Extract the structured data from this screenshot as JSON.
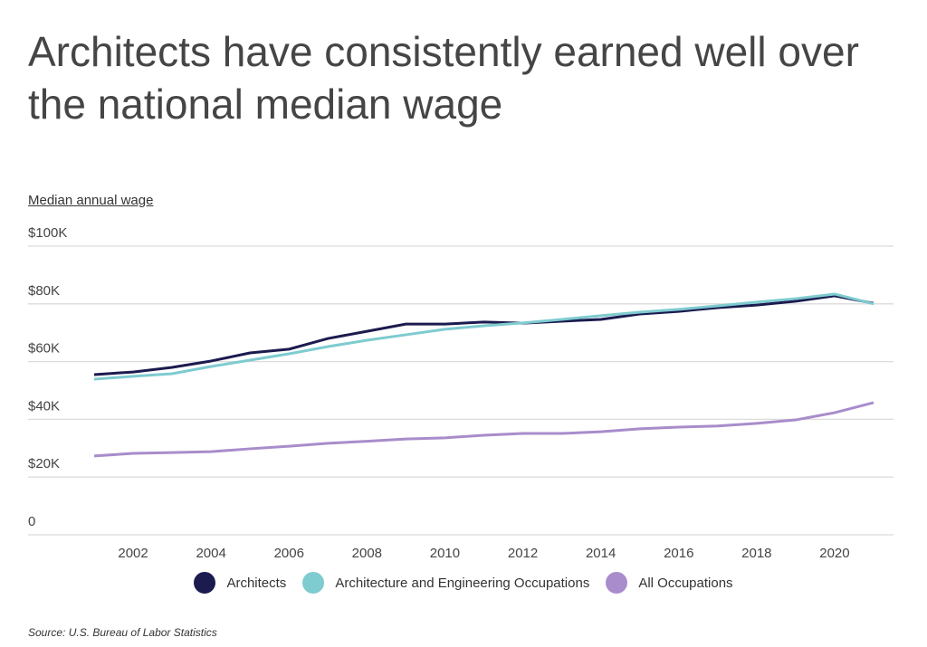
{
  "title": "Architects have consistently earned well over the national median wage",
  "source": "Source:  U.S. Bureau of Labor Statistics",
  "chart_data": {
    "type": "line",
    "title": "Architects have consistently earned well over the national median wage",
    "ylabel": "Median annual wage",
    "xlabel": "",
    "ylim": [
      0,
      100000
    ],
    "yticks": [
      0,
      20000,
      40000,
      60000,
      80000,
      100000
    ],
    "ytick_labels": [
      "0",
      "$20K",
      "$40K",
      "$60K",
      "$80K",
      "$100K"
    ],
    "xticks": [
      2002,
      2004,
      2006,
      2008,
      2010,
      2012,
      2014,
      2016,
      2018,
      2020
    ],
    "xtick_labels": [
      "2002",
      "2004",
      "2006",
      "2008",
      "2010",
      "2012",
      "2014",
      "2016",
      "2018",
      "2020"
    ],
    "xlim": [
      2001,
      2021
    ],
    "grid": true,
    "legend_position": "bottom",
    "x": [
      2001,
      2002,
      2003,
      2004,
      2005,
      2006,
      2007,
      2008,
      2009,
      2010,
      2011,
      2012,
      2013,
      2014,
      2015,
      2016,
      2017,
      2018,
      2019,
      2020,
      2021
    ],
    "series": [
      {
        "name": "Architects",
        "color": "#1b1b4f",
        "values": [
          55500,
          56400,
          58000,
          60200,
          63000,
          64300,
          68000,
          70500,
          73000,
          73000,
          73700,
          73300,
          74000,
          74600,
          76500,
          77400,
          78700,
          79600,
          80900,
          82800,
          80200
        ]
      },
      {
        "name": "Architecture and Engineering Occupations",
        "color": "#7ecbd0",
        "values": [
          53900,
          54900,
          55800,
          58300,
          60500,
          62700,
          65200,
          67400,
          69300,
          71200,
          72400,
          73400,
          74600,
          75900,
          77100,
          78100,
          79300,
          80600,
          81800,
          83400,
          80000
        ]
      },
      {
        "name": "All Occupations",
        "color": "#a98ccb",
        "values": [
          27300,
          28200,
          28500,
          28800,
          29800,
          30700,
          31700,
          32400,
          33200,
          33600,
          34500,
          35100,
          35100,
          35700,
          36700,
          37300,
          37700,
          38600,
          39800,
          42300,
          45800
        ]
      }
    ]
  }
}
